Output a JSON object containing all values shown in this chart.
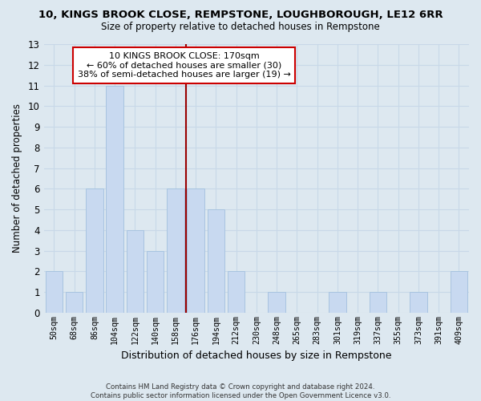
{
  "title_line1": "10, KINGS BROOK CLOSE, REMPSTONE, LOUGHBOROUGH, LE12 6RR",
  "title_line2": "Size of property relative to detached houses in Rempstone",
  "xlabel": "Distribution of detached houses by size in Rempstone",
  "ylabel": "Number of detached properties",
  "bar_labels": [
    "50sqm",
    "68sqm",
    "86sqm",
    "104sqm",
    "122sqm",
    "140sqm",
    "158sqm",
    "176sqm",
    "194sqm",
    "212sqm",
    "230sqm",
    "248sqm",
    "265sqm",
    "283sqm",
    "301sqm",
    "319sqm",
    "337sqm",
    "355sqm",
    "373sqm",
    "391sqm",
    "409sqm"
  ],
  "bar_values": [
    2,
    1,
    6,
    11,
    4,
    3,
    6,
    6,
    5,
    2,
    0,
    1,
    0,
    0,
    1,
    0,
    1,
    0,
    1,
    0,
    2
  ],
  "bar_color": "#c8d9f0",
  "bar_edge_color": "#a8c4e0",
  "reference_line_x": 6.5,
  "reference_line_color": "#990000",
  "ylim": [
    0,
    13
  ],
  "yticks": [
    0,
    1,
    2,
    3,
    4,
    5,
    6,
    7,
    8,
    9,
    10,
    11,
    12,
    13
  ],
  "annotation_text_line1": "10 KINGS BROOK CLOSE: 170sqm",
  "annotation_text_line2": "← 60% of detached houses are smaller (30)",
  "annotation_text_line3": "38% of semi-detached houses are larger (19) →",
  "annotation_box_facecolor": "#ffffff",
  "annotation_box_edgecolor": "#cc0000",
  "footer_line1": "Contains HM Land Registry data © Crown copyright and database right 2024.",
  "footer_line2": "Contains public sector information licensed under the Open Government Licence v3.0.",
  "grid_color": "#c8d8e8",
  "background_color": "#dde8f0",
  "plot_bg_color": "#dde8f0"
}
